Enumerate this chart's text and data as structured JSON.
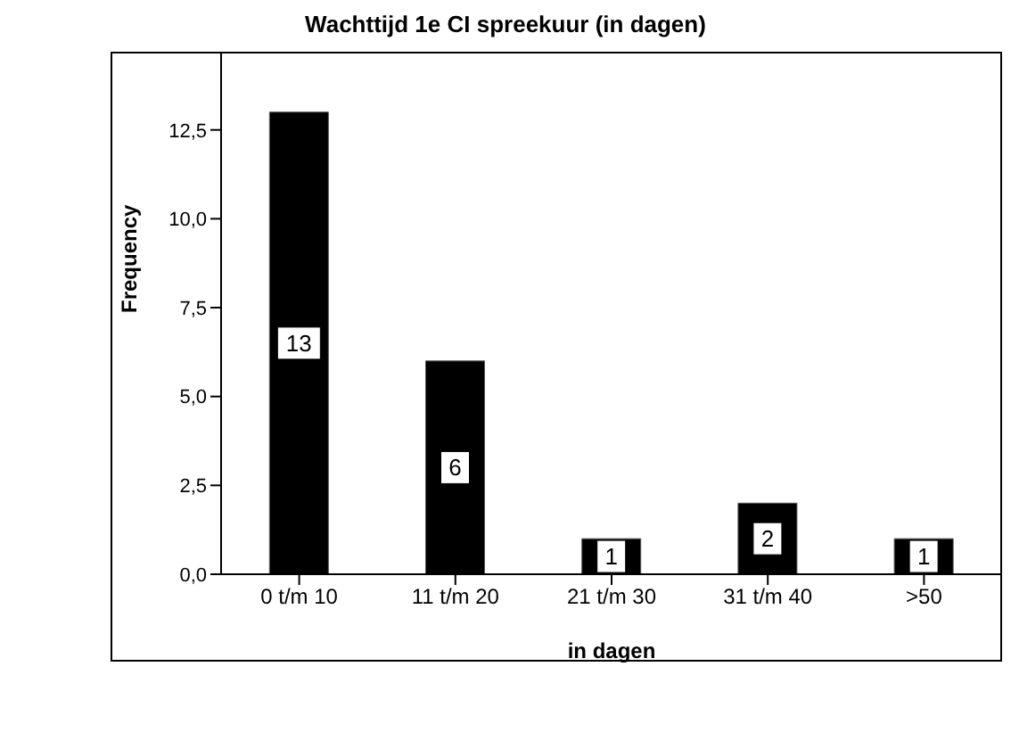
{
  "chart_data": {
    "type": "bar",
    "title": "Wachttijd 1e CI spreekuur (in dagen)",
    "xlabel": "in dagen",
    "ylabel": "Frequency",
    "categories": [
      "0 t/m 10",
      "11 t/m 20",
      "21 t/m 30",
      "31 t/m 40",
      ">50"
    ],
    "values": [
      13,
      6,
      1,
      2,
      1
    ],
    "color": "#000000",
    "ylim": [
      0,
      14.7
    ],
    "yticks": [
      {
        "value": 0,
        "label": "0,0"
      },
      {
        "value": 2.5,
        "label": "2,5"
      },
      {
        "value": 5,
        "label": "5,0"
      },
      {
        "value": 7.5,
        "label": "7,5"
      },
      {
        "value": 10,
        "label": "10,0"
      },
      {
        "value": 12.5,
        "label": "12,5"
      }
    ],
    "data_labels": true,
    "grid": false,
    "legend": false
  }
}
